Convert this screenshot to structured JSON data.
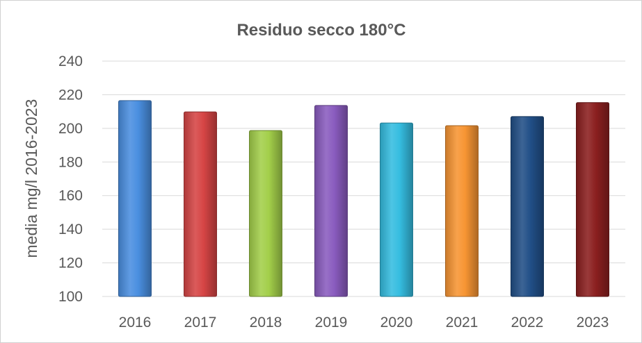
{
  "chart_data": {
    "type": "bar",
    "title": "Residuo secco 180°C",
    "xlabel": "",
    "ylabel": "media mg/l 2016-2023",
    "categories": [
      "2016",
      "2017",
      "2018",
      "2019",
      "2020",
      "2021",
      "2022",
      "2023"
    ],
    "values": [
      216.5,
      209.8,
      198.7,
      213.6,
      203.2,
      201.6,
      207.0,
      215.3
    ],
    "ylim": [
      100,
      240
    ],
    "yticks": [
      100,
      120,
      140,
      160,
      180,
      200,
      220,
      240
    ],
    "grid": true,
    "legend": "none",
    "colors": [
      "#4a8fe0",
      "#d64545",
      "#a3cf4a",
      "#8a5cbf",
      "#35bde0",
      "#f79533",
      "#214f87",
      "#8b1f1f"
    ]
  }
}
